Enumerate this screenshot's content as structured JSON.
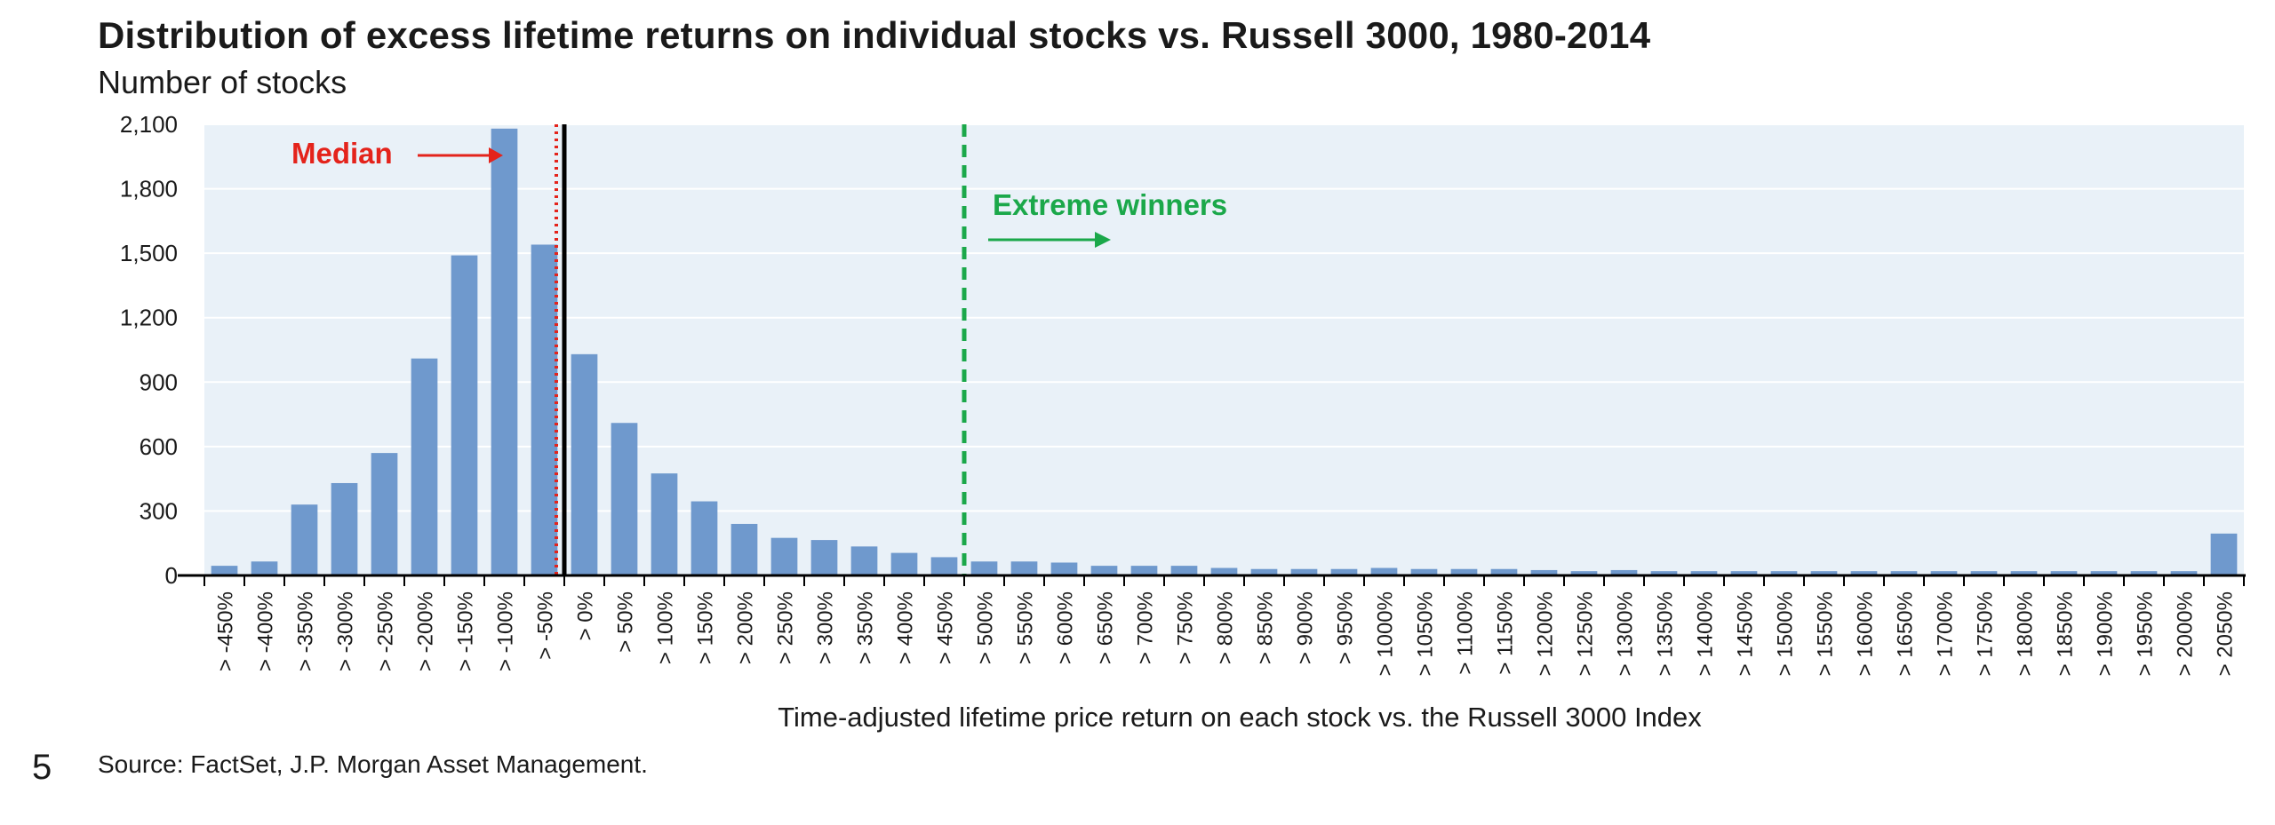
{
  "title": "Distribution of excess lifetime returns on individual stocks vs. Russell 3000, 1980-2014",
  "subtitle": "Number of stocks",
  "source": "Source: FactSet, J.P. Morgan Asset Management.",
  "page_number": "5",
  "colors": {
    "bar": "#6f99cd",
    "plot_bg": "#e9f1f8",
    "gridline": "#ffffff",
    "median_line": "#e4231b",
    "zero_line": "#000000",
    "extreme_line": "#1ba84a",
    "median_label": "#e4231b",
    "extreme_label": "#1ba84a"
  },
  "annotations": {
    "median": "Median",
    "extreme": "Extreme winners"
  },
  "chart_data": {
    "type": "bar",
    "title": "Distribution of excess lifetime returns on individual stocks vs. Russell 3000, 1980-2014",
    "ylabel": "Number of stocks",
    "xlabel": "Time-adjusted lifetime price return on each stock vs. the Russell 3000 Index",
    "ylim": [
      0,
      2100
    ],
    "yticks": [
      0,
      300,
      600,
      900,
      1200,
      1500,
      1800,
      2100
    ],
    "ytick_labels": [
      "0",
      "300",
      "600",
      "900",
      "1,200",
      "1,500",
      "1,800",
      "2,100"
    ],
    "grid": true,
    "legend": "none",
    "categories": [
      "> -450%",
      "> -400%",
      "> -350%",
      "> -300%",
      "> -250%",
      "> -200%",
      "> -150%",
      "> -100%",
      "> -50%",
      "> 0%",
      "> 50%",
      "> 100%",
      "> 150%",
      "> 200%",
      "> 250%",
      "> 300%",
      "> 350%",
      "> 400%",
      "> 450%",
      "> 500%",
      "> 550%",
      "> 600%",
      "> 650%",
      "> 700%",
      "> 750%",
      "> 800%",
      "> 850%",
      "> 900%",
      "> 950%",
      "> 1000%",
      "> 1050%",
      "> 1100%",
      "> 1150%",
      "> 1200%",
      "> 1250%",
      "> 1300%",
      "> 1350%",
      "> 1400%",
      "> 1450%",
      "> 1500%",
      "> 1550%",
      "> 1600%",
      "> 1650%",
      "> 1700%",
      "> 1750%",
      "> 1800%",
      "> 1850%",
      "> 1900%",
      "> 1950%",
      "> 2000%",
      "> 2050%"
    ],
    "values": [
      45,
      65,
      330,
      430,
      570,
      1010,
      1490,
      2080,
      1540,
      1030,
      710,
      475,
      345,
      240,
      175,
      165,
      135,
      105,
      85,
      65,
      65,
      60,
      45,
      45,
      45,
      35,
      30,
      30,
      30,
      35,
      30,
      30,
      30,
      25,
      20,
      25,
      20,
      20,
      20,
      20,
      20,
      20,
      20,
      20,
      20,
      20,
      20,
      20,
      20,
      20,
      195
    ],
    "reference_lines": [
      {
        "label": "Median",
        "position_category_index": 7.8,
        "style": "dotted"
      },
      {
        "label": "",
        "position_category_index": 8.5,
        "style": "solid"
      },
      {
        "label": "Extreme winners",
        "position_category_index": 18.5,
        "style": "dashed"
      }
    ]
  }
}
